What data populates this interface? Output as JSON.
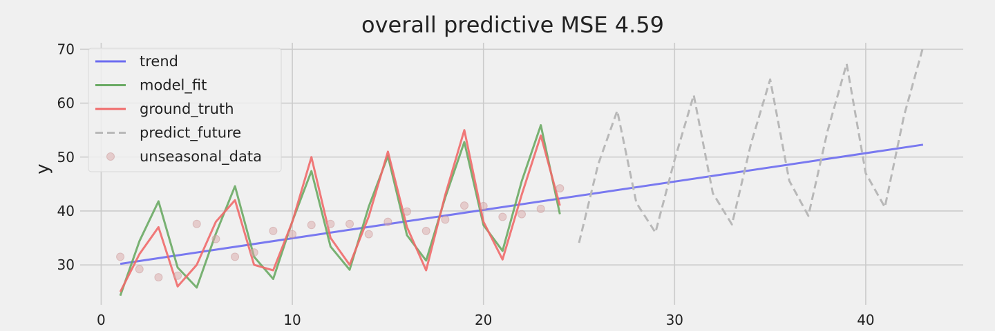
{
  "chart_data": {
    "type": "line",
    "title": "overall predictive MSE  4.59",
    "xlabel": "",
    "ylabel": "y",
    "xlim": [
      -1.1,
      45.1
    ],
    "ylim": [
      22.6,
      71.2
    ],
    "xticks": [
      0,
      10,
      20,
      30,
      40
    ],
    "yticks": [
      30,
      40,
      50,
      60,
      70
    ],
    "grid": true,
    "legend_position": "top-left",
    "series": [
      {
        "name": "trend",
        "style": "line",
        "color": "#6b6bf0",
        "x": [
          1,
          43
        ],
        "y": [
          30.2,
          52.3
        ]
      },
      {
        "name": "model_fit",
        "style": "line",
        "color": "#6aaa64",
        "x": [
          1,
          2,
          3,
          4,
          5,
          6,
          7,
          8,
          9,
          10,
          11,
          12,
          13,
          14,
          15,
          16,
          17,
          18,
          19,
          20,
          21,
          22,
          23,
          24
        ],
        "y": [
          24.3,
          34.4,
          41.8,
          29.5,
          25.8,
          35.8,
          44.6,
          31.5,
          27.4,
          38.1,
          47.4,
          33.4,
          29.1,
          40.8,
          50.2,
          35.5,
          30.8,
          42.5,
          52.8,
          37.4,
          32.6,
          45.5,
          55.9,
          39.4
        ]
      },
      {
        "name": "ground_truth",
        "style": "line",
        "color": "#f06a6a",
        "x": [
          1,
          2,
          3,
          4,
          5,
          6,
          7,
          8,
          9,
          10,
          11,
          12,
          13,
          14,
          15,
          16,
          17,
          18,
          19,
          20,
          21,
          22,
          23,
          24
        ],
        "y": [
          25,
          32,
          37,
          26,
          30,
          38,
          42,
          30,
          29,
          38,
          50,
          35,
          30,
          39,
          51,
          37,
          29,
          43,
          55,
          38,
          31,
          43,
          54,
          41
        ]
      },
      {
        "name": "predict_future",
        "style": "dashed",
        "color": "#b8b8b8",
        "x": [
          25,
          26,
          27,
          28,
          29,
          30,
          31,
          32,
          33,
          34,
          35,
          36,
          37,
          38,
          39,
          40,
          41,
          42,
          43
        ],
        "y": [
          34.1,
          48.6,
          58.6,
          41.5,
          36.0,
          49.5,
          61.5,
          43.3,
          37.5,
          52.5,
          64.4,
          45.6,
          39.1,
          54.8,
          67.3,
          47.0,
          40.7,
          57.6,
          70.4
        ]
      },
      {
        "name": "unseasonal_data",
        "style": "scatter",
        "color": "#d9a8a8",
        "x": [
          1,
          2,
          3,
          4,
          5,
          6,
          7,
          8,
          9,
          10,
          11,
          12,
          13,
          14,
          15,
          16,
          17,
          18,
          19,
          20,
          21,
          22,
          23,
          24
        ],
        "y": [
          31.5,
          29.2,
          27.7,
          28.0,
          37.6,
          34.8,
          31.5,
          32.3,
          36.3,
          35.7,
          37.4,
          37.6,
          37.6,
          35.7,
          38.0,
          39.9,
          36.3,
          38.4,
          41.0,
          40.9,
          38.9,
          39.4,
          40.4,
          44.2
        ]
      }
    ]
  }
}
